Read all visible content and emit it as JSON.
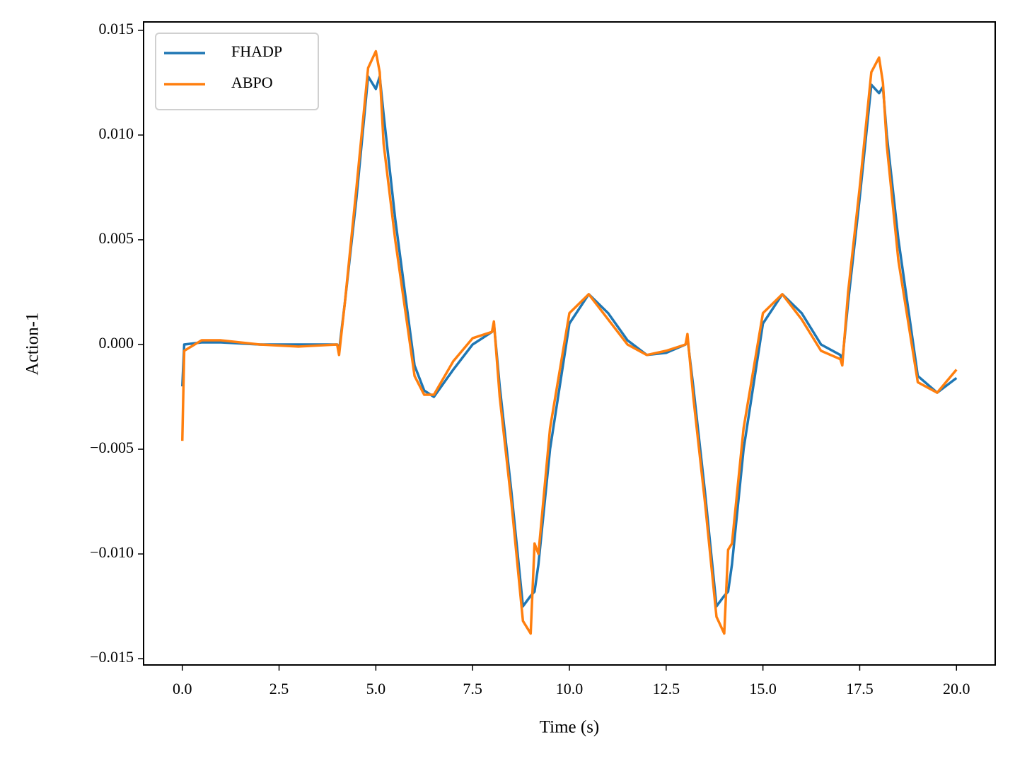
{
  "chart_data": {
    "type": "line",
    "xlabel": "Time (s)",
    "ylabel": "Action-1",
    "x": [
      0,
      0.05,
      0.5,
      1,
      2,
      3,
      4,
      4.05,
      4.2,
      4.5,
      4.8,
      5.0,
      5.1,
      5.2,
      5.5,
      6.0,
      6.25,
      6.5,
      7.0,
      7.5,
      8.0,
      8.05,
      8.2,
      8.5,
      8.8,
      9.0,
      9.1,
      9.2,
      9.5,
      10.0,
      10.5,
      11.0,
      11.5,
      12.0,
      12.5,
      13.0,
      13.05,
      13.2,
      13.5,
      13.8,
      14.0,
      14.1,
      14.2,
      14.5,
      15.0,
      15.5,
      16.0,
      16.5,
      17.0,
      17.05,
      17.2,
      17.5,
      17.8,
      18.0,
      18.1,
      18.2,
      18.5,
      19.0,
      19.5,
      20.0
    ],
    "series": [
      {
        "name": "FHADP",
        "color": "#1f77b4",
        "values": [
          -0.002,
          0.0,
          0.0001,
          0.0001,
          0.0,
          0.0,
          0.0,
          -0.0003,
          0.002,
          0.007,
          0.0128,
          0.0122,
          0.0128,
          0.011,
          0.006,
          -0.001,
          -0.0022,
          -0.0025,
          -0.0012,
          0.0,
          0.0006,
          0.001,
          -0.002,
          -0.007,
          -0.0125,
          -0.012,
          -0.0118,
          -0.0105,
          -0.005,
          0.001,
          0.0024,
          0.0015,
          0.0002,
          -0.0005,
          -0.0004,
          0.0,
          0.0003,
          -0.002,
          -0.007,
          -0.0125,
          -0.012,
          -0.0118,
          -0.0105,
          -0.005,
          0.001,
          0.0024,
          0.0015,
          0.0,
          -0.0005,
          -0.0008,
          0.002,
          0.007,
          0.0124,
          0.012,
          0.0123,
          0.01,
          0.005,
          -0.0015,
          -0.0023,
          -0.0016
        ]
      },
      {
        "name": "ABPO",
        "color": "#ff7f0e",
        "values": [
          -0.0046,
          -0.0003,
          0.0002,
          0.0002,
          0.0,
          -0.0001,
          0.0,
          -0.0005,
          0.002,
          0.0075,
          0.0132,
          0.014,
          0.013,
          0.0096,
          0.005,
          -0.0015,
          -0.0024,
          -0.0024,
          -0.0008,
          0.0003,
          0.0006,
          0.0011,
          -0.0025,
          -0.0075,
          -0.0132,
          -0.0138,
          -0.0095,
          -0.01,
          -0.004,
          0.0015,
          0.0024,
          0.0012,
          0.0,
          -0.0005,
          -0.0003,
          0.0,
          0.0005,
          -0.0025,
          -0.0075,
          -0.013,
          -0.0138,
          -0.0098,
          -0.0095,
          -0.004,
          0.0015,
          0.0024,
          0.0012,
          -0.0003,
          -0.0007,
          -0.001,
          0.0025,
          0.0075,
          0.013,
          0.0137,
          0.0125,
          0.0095,
          0.004,
          -0.0018,
          -0.0023,
          -0.0012
        ]
      }
    ],
    "xlim": [
      -1.0,
      21.0
    ],
    "ylim": [
      -0.0153,
      0.0154
    ],
    "xticks": [
      {
        "value": 0,
        "label": "0.0"
      },
      2.5,
      {
        "value": 5,
        "label": "5.0"
      },
      7.5,
      {
        "value": 10,
        "label": "10.0"
      },
      12.5,
      {
        "value": 15,
        "label": "15.0"
      },
      17.5,
      {
        "value": 20,
        "label": "20.0"
      }
    ],
    "yticks": [
      {
        "value": -0.015,
        "label": "−0.015"
      },
      {
        "value": -0.01,
        "label": "−0.010"
      },
      {
        "value": -0.005,
        "label": "−0.005"
      },
      {
        "value": 0,
        "label": "0.000"
      },
      {
        "value": 0.005,
        "label": "0.005"
      },
      {
        "value": 0.01,
        "label": "0.010"
      },
      {
        "value": 0.015,
        "label": "0.015"
      }
    ],
    "grid": false,
    "legend": "upper left"
  }
}
